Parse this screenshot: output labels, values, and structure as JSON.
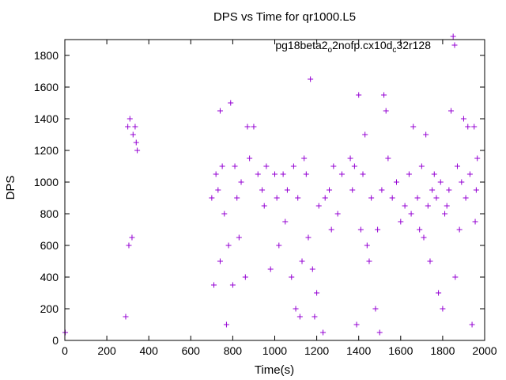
{
  "chart_data": {
    "type": "scatter",
    "title": "DPS vs Time for qr1000.L5",
    "xlabel": "Time(s)",
    "ylabel": "DPS",
    "xlim": [
      0,
      2000
    ],
    "ylim": [
      0,
      1900
    ],
    "x_ticks": [
      "0",
      "200",
      "400",
      "600",
      "800",
      "1000",
      "1200",
      "1400",
      "1600",
      "1800",
      "2000"
    ],
    "y_ticks": [
      "0",
      "200",
      "400",
      "600",
      "800",
      "1000",
      "1200",
      "1400",
      "1600",
      "1800"
    ],
    "grid": false,
    "legend_position": "top-right",
    "marker": "+",
    "color": "#9400D3",
    "series": [
      {
        "name_parts": [
          "pg18beta2",
          "o",
          "2nofp.cx10d",
          "c",
          "32r128"
        ],
        "points": [
          [
            2,
            50
          ],
          [
            290,
            150
          ],
          [
            300,
            1350
          ],
          [
            305,
            600
          ],
          [
            310,
            1400
          ],
          [
            320,
            650
          ],
          [
            325,
            1300
          ],
          [
            335,
            1350
          ],
          [
            340,
            1250
          ],
          [
            345,
            1200
          ],
          [
            710,
            350
          ],
          [
            740,
            1450
          ],
          [
            790,
            1500
          ],
          [
            810,
            1100
          ],
          [
            870,
            1350
          ],
          [
            900,
            1350
          ],
          [
            1100,
            200
          ],
          [
            1120,
            150
          ],
          [
            1170,
            1650
          ],
          [
            1200,
            300
          ],
          [
            1230,
            50
          ],
          [
            1390,
            100
          ],
          [
            1400,
            1550
          ],
          [
            1430,
            1300
          ],
          [
            1450,
            500
          ],
          [
            1480,
            200
          ],
          [
            1500,
            50
          ],
          [
            1520,
            1550
          ],
          [
            1530,
            1450
          ],
          [
            1660,
            1350
          ],
          [
            1690,
            700
          ],
          [
            1710,
            650
          ],
          [
            1720,
            1300
          ],
          [
            1740,
            500
          ],
          [
            1780,
            300
          ],
          [
            1800,
            200
          ],
          [
            1810,
            800
          ],
          [
            1840,
            1450
          ],
          [
            1850,
            1920
          ],
          [
            1860,
            400
          ],
          [
            1880,
            700
          ],
          [
            1900,
            1400
          ],
          [
            1920,
            1350
          ],
          [
            1940,
            100
          ],
          [
            1950,
            1350
          ],
          [
            1955,
            750
          ],
          [
            740,
            500
          ],
          [
            760,
            800
          ],
          [
            770,
            100
          ],
          [
            780,
            600
          ],
          [
            800,
            350
          ],
          [
            830,
            650
          ],
          [
            860,
            400
          ],
          [
            950,
            850
          ],
          [
            980,
            450
          ],
          [
            1000,
            1050
          ],
          [
            1020,
            600
          ],
          [
            1050,
            750
          ],
          [
            1080,
            400
          ],
          [
            1130,
            500
          ],
          [
            1160,
            650
          ],
          [
            1180,
            450
          ],
          [
            1190,
            150
          ],
          [
            1210,
            850
          ],
          [
            1240,
            900
          ],
          [
            1270,
            700
          ],
          [
            1300,
            800
          ],
          [
            1320,
            1050
          ],
          [
            1360,
            1150
          ],
          [
            1370,
            950
          ],
          [
            1380,
            1100
          ],
          [
            1410,
            700
          ],
          [
            1420,
            1050
          ],
          [
            1440,
            600
          ],
          [
            1460,
            900
          ],
          [
            1490,
            700
          ],
          [
            1510,
            950
          ],
          [
            1540,
            1150
          ],
          [
            1560,
            900
          ],
          [
            1580,
            1000
          ],
          [
            1600,
            750
          ],
          [
            1620,
            850
          ],
          [
            1640,
            1050
          ],
          [
            1650,
            800
          ],
          [
            1680,
            900
          ],
          [
            1700,
            1100
          ],
          [
            1730,
            850
          ],
          [
            1750,
            950
          ],
          [
            1760,
            1050
          ],
          [
            1770,
            900
          ],
          [
            1790,
            1000
          ],
          [
            1820,
            850
          ],
          [
            1830,
            950
          ],
          [
            1870,
            1100
          ],
          [
            1890,
            1000
          ],
          [
            1910,
            900
          ],
          [
            1930,
            1050
          ],
          [
            1960,
            950
          ],
          [
            1965,
            1150
          ],
          [
            700,
            900
          ],
          [
            720,
            1050
          ],
          [
            730,
            950
          ],
          [
            750,
            1100
          ],
          [
            820,
            900
          ],
          [
            840,
            1000
          ],
          [
            880,
            1150
          ],
          [
            920,
            1050
          ],
          [
            940,
            950
          ],
          [
            960,
            1100
          ],
          [
            1010,
            900
          ],
          [
            1040,
            1050
          ],
          [
            1060,
            950
          ],
          [
            1090,
            1100
          ],
          [
            1110,
            900
          ],
          [
            1140,
            1150
          ],
          [
            1150,
            1050
          ],
          [
            1260,
            950
          ],
          [
            1280,
            1100
          ]
        ]
      }
    ]
  }
}
